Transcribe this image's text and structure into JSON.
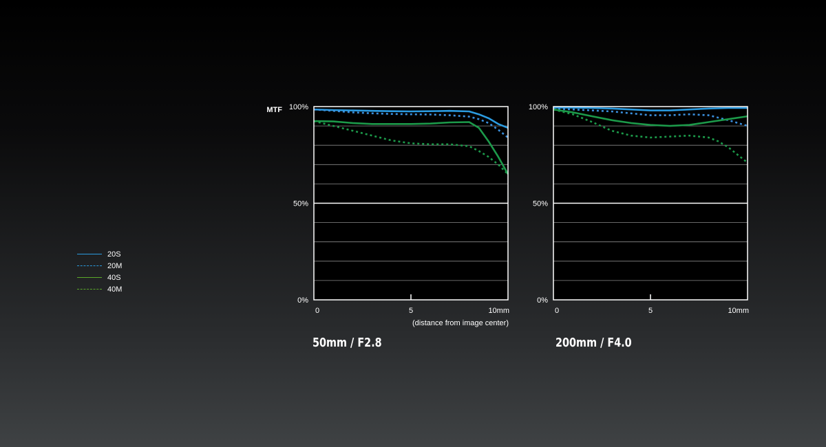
{
  "chart_data": [
    {
      "type": "line",
      "title": "50mm / F2.8",
      "ylabel": "MTF",
      "xlabel": "(distance from image center)",
      "xlim": [
        0,
        10
      ],
      "ylim": [
        0,
        100
      ],
      "y_ticks": [
        "0%",
        "50%",
        "100%"
      ],
      "x_ticks": [
        "0",
        "5",
        "10mm"
      ],
      "series": [
        {
          "name": "20S",
          "x": [
            0,
            1,
            2,
            3,
            4,
            5,
            6,
            7,
            8,
            8.5,
            9,
            9.5,
            10
          ],
          "y": [
            98.5,
            98.2,
            98,
            97.8,
            97.6,
            97.5,
            97.6,
            97.8,
            97.5,
            96,
            94,
            91,
            89
          ]
        },
        {
          "name": "20M",
          "x": [
            0,
            1,
            2,
            3,
            4,
            5,
            6,
            7,
            8,
            8.5,
            9,
            9.5,
            10
          ],
          "y": [
            98.5,
            97.8,
            97,
            96.5,
            96.2,
            96,
            95.9,
            95.5,
            94.8,
            93.5,
            91.5,
            88,
            84
          ]
        },
        {
          "name": "40S",
          "x": [
            0,
            1,
            2,
            3,
            4,
            5,
            6,
            7,
            8,
            8.5,
            9,
            9.5,
            10
          ],
          "y": [
            92.5,
            92.3,
            91.5,
            91,
            91,
            91,
            91.2,
            91.8,
            92,
            89,
            82,
            74,
            65
          ]
        },
        {
          "name": "40M",
          "x": [
            0,
            1,
            2,
            3,
            4,
            5,
            6,
            7,
            8,
            8.5,
            9,
            9.5,
            10
          ],
          "y": [
            92.5,
            90,
            87.5,
            85,
            82.5,
            81,
            80.5,
            80.5,
            79.5,
            77,
            74,
            70,
            65
          ]
        }
      ]
    },
    {
      "type": "line",
      "title": "200mm / F4.0",
      "xlim": [
        0,
        10
      ],
      "ylim": [
        0,
        100
      ],
      "y_ticks": [
        "0%",
        "50%",
        "100%"
      ],
      "x_ticks": [
        "0",
        "5",
        "10mm"
      ],
      "series": [
        {
          "name": "20S",
          "x": [
            0,
            1,
            2,
            3,
            4,
            5,
            6,
            7,
            8,
            9,
            10
          ],
          "y": [
            99.5,
            99.5,
            99.3,
            99,
            98.5,
            98,
            98,
            98.5,
            99,
            99.3,
            99.3
          ]
        },
        {
          "name": "20M",
          "x": [
            0,
            1,
            2,
            3,
            4,
            5,
            6,
            7,
            8,
            9,
            10
          ],
          "y": [
            99,
            98.5,
            98,
            97.5,
            96.5,
            95.5,
            95.5,
            96,
            95.5,
            93,
            90
          ]
        },
        {
          "name": "40S",
          "x": [
            0,
            1,
            2,
            3,
            4,
            5,
            6,
            7,
            8,
            9,
            10
          ],
          "y": [
            98.5,
            97,
            95,
            93,
            91.5,
            90.5,
            90,
            90.5,
            92,
            93.5,
            95
          ]
        },
        {
          "name": "40M",
          "x": [
            0,
            1,
            2,
            3,
            4,
            5,
            6,
            7,
            8,
            8.5,
            9,
            9.5,
            10
          ],
          "y": [
            98.5,
            96,
            92,
            87.5,
            85,
            84,
            84.5,
            85,
            84,
            82,
            79,
            75,
            71
          ]
        }
      ]
    }
  ],
  "legend": [
    {
      "label": "20S",
      "color": "#2b9be0",
      "dashed": false
    },
    {
      "label": "20M",
      "color": "#2b9be0",
      "dashed": true
    },
    {
      "label": "40S",
      "color": "#5aa82a",
      "dashed": false
    },
    {
      "label": "40M",
      "color": "#5aa82a",
      "dashed": true
    }
  ],
  "series_colors": {
    "20S": "#2b9be0",
    "20M": "#3a8fdc",
    "40S": "#1c9a4a",
    "40M": "#1c9a4a"
  }
}
